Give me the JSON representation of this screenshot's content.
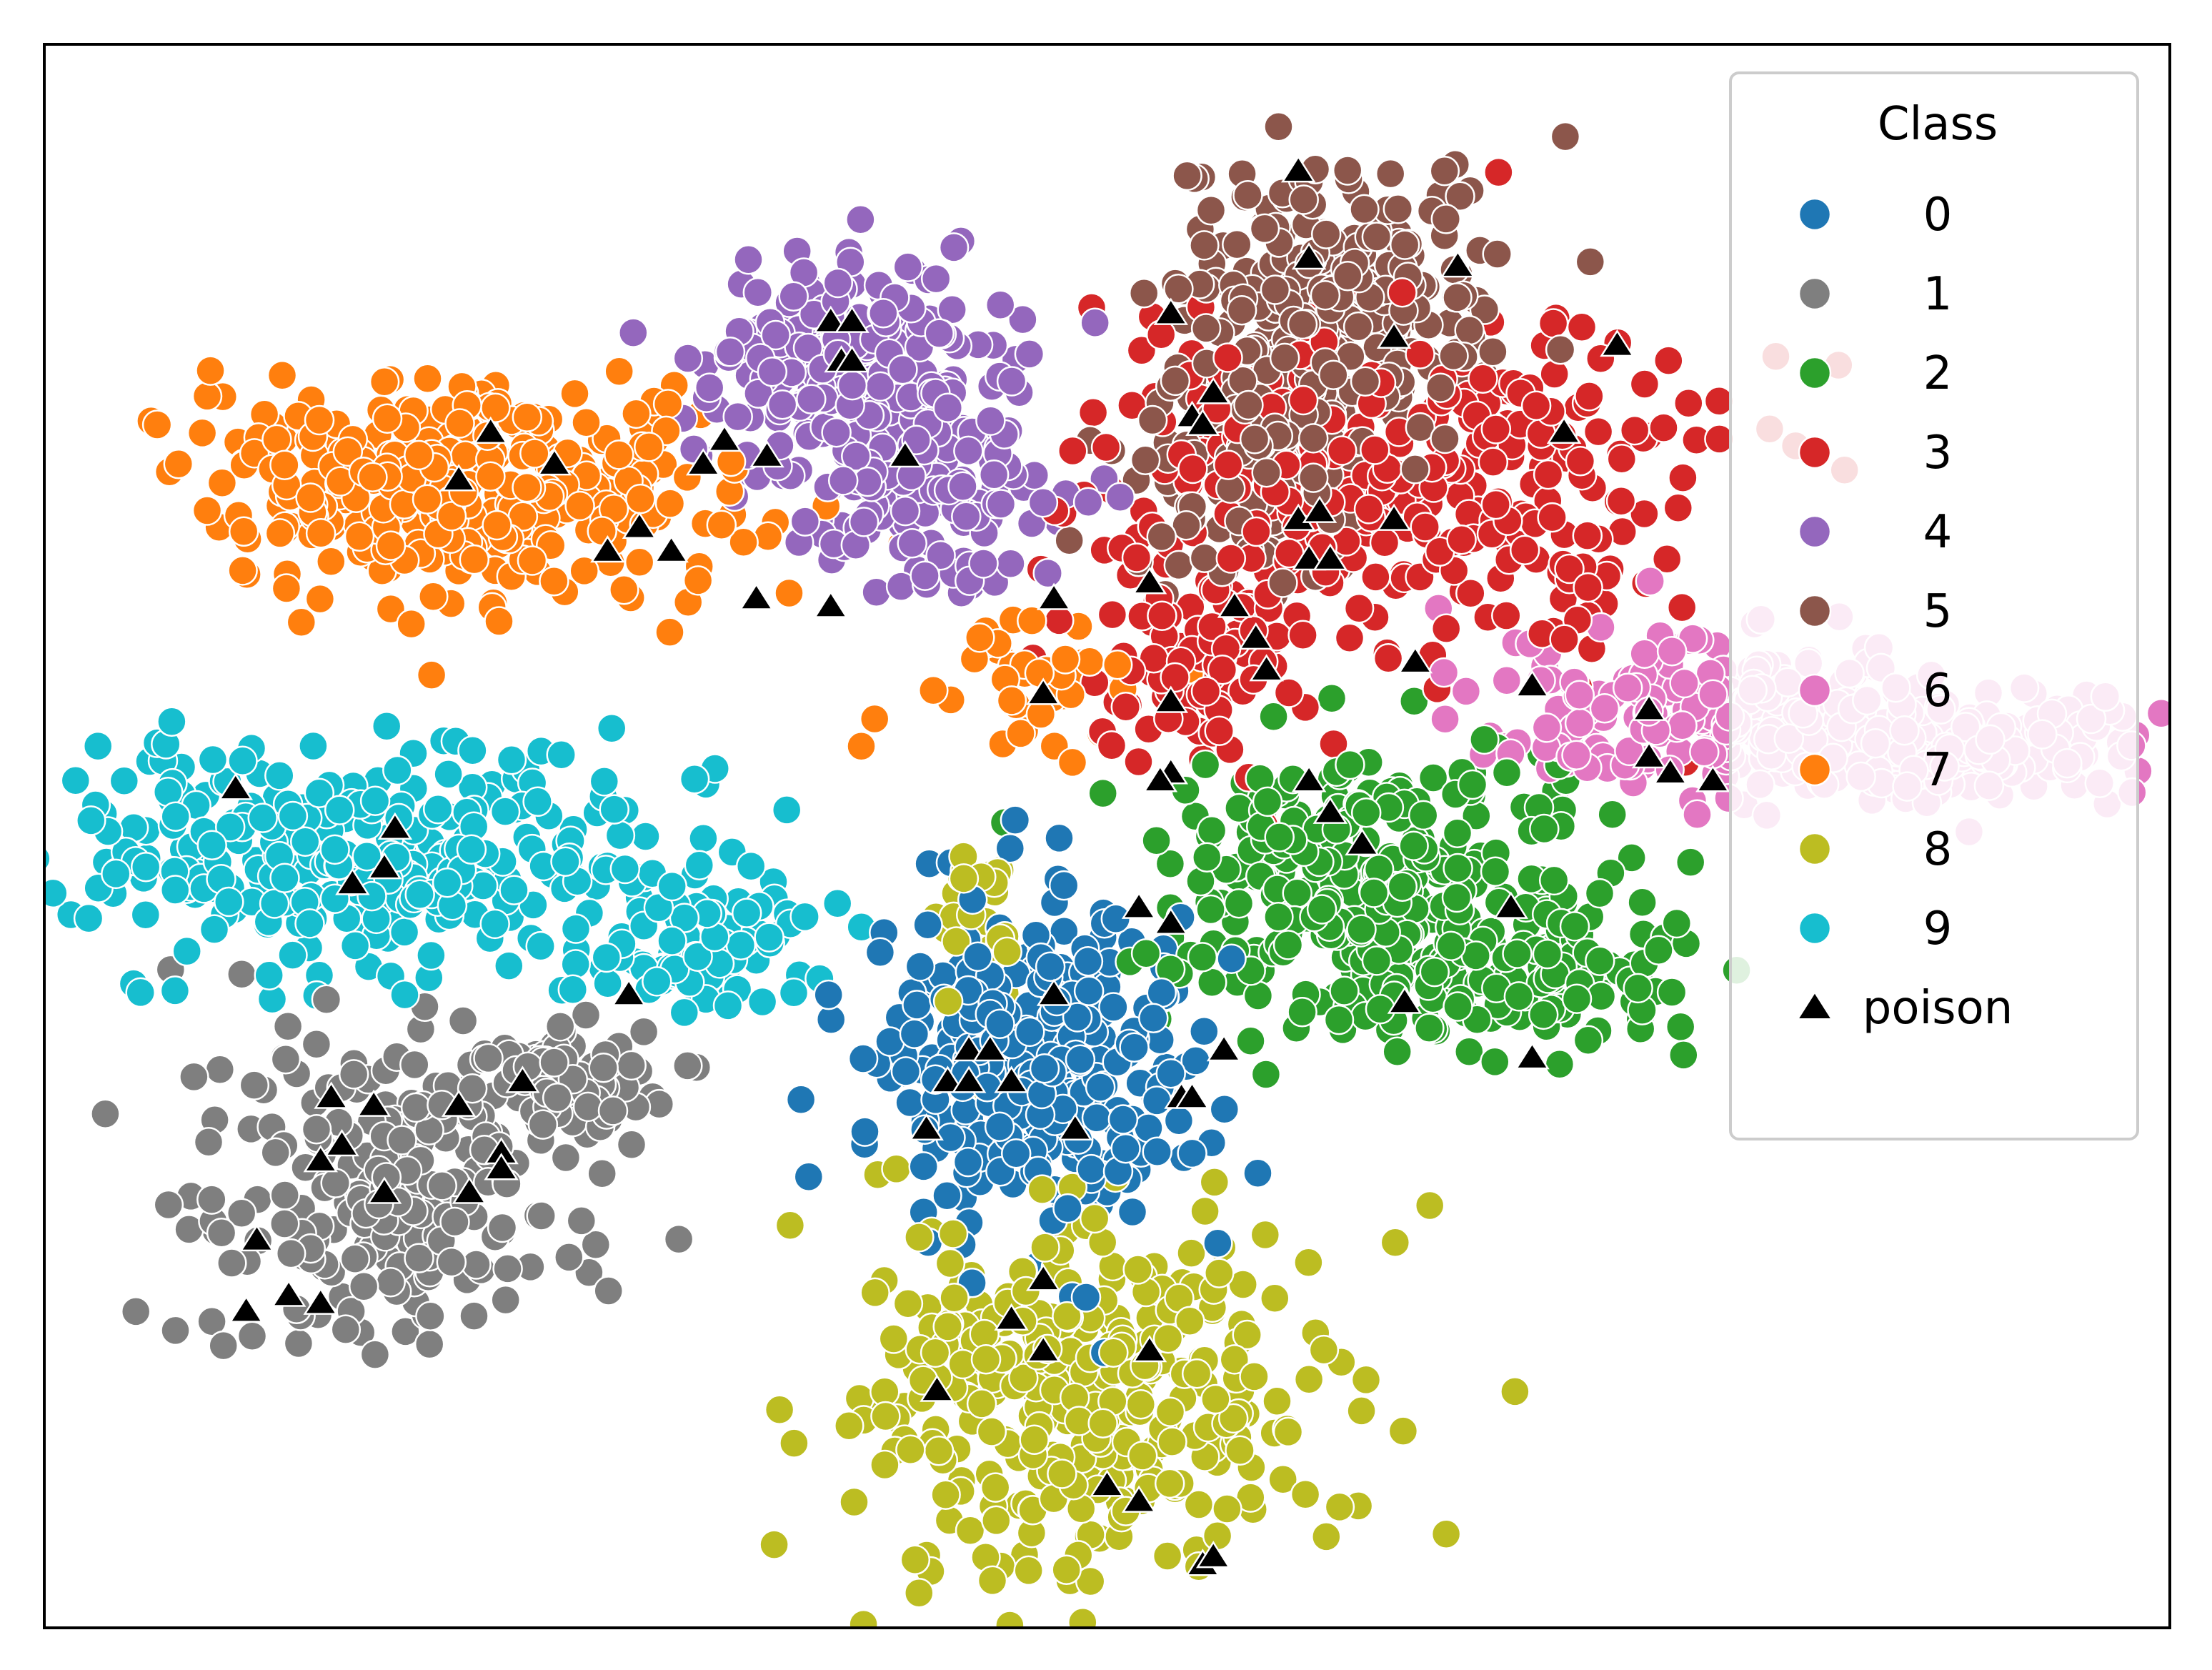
{
  "chart_data": {
    "type": "scatter",
    "title": "",
    "xlabel": "",
    "ylabel": "",
    "xlim": [
      0,
      100
    ],
    "ylim": [
      0,
      100
    ],
    "grid": false,
    "ticks": false,
    "legend": {
      "title": "Class",
      "placement": "top-right"
    },
    "series": [
      {
        "name": "0",
        "color": "#1f77b4",
        "marker": "circle",
        "clusters": [
          {
            "cx": 46.5,
            "cy": 35.5,
            "sx": 3.6,
            "sy": 5.0,
            "n": 340
          }
        ]
      },
      {
        "name": "1",
        "color": "#7f7f7f",
        "marker": "circle",
        "clusters": [
          {
            "cx": 16.5,
            "cy": 27.0,
            "sx": 4.5,
            "sy": 4.5,
            "n": 230
          },
          {
            "cx": 24.5,
            "cy": 35.0,
            "sx": 2.5,
            "sy": 2.0,
            "n": 90
          }
        ]
      },
      {
        "name": "2",
        "color": "#2ca02c",
        "marker": "circle",
        "clusters": [
          {
            "cx": 62.5,
            "cy": 47.0,
            "sx": 5.0,
            "sy": 4.5,
            "n": 340
          },
          {
            "cx": 70.5,
            "cy": 41.0,
            "sx": 3.5,
            "sy": 2.0,
            "n": 110
          }
        ]
      },
      {
        "name": "3",
        "color": "#d62728",
        "marker": "circle",
        "clusters": [
          {
            "cx": 63.5,
            "cy": 73.0,
            "sx": 7.0,
            "sy": 5.5,
            "n": 360
          },
          {
            "cx": 54.5,
            "cy": 61.0,
            "sx": 3.0,
            "sy": 3.0,
            "n": 90
          }
        ]
      },
      {
        "name": "4",
        "color": "#9467bd",
        "marker": "circle",
        "clusters": [
          {
            "cx": 37.5,
            "cy": 80.0,
            "sx": 3.5,
            "sy": 3.5,
            "n": 240
          },
          {
            "cx": 42.0,
            "cy": 72.0,
            "sx": 3.0,
            "sy": 3.0,
            "n": 130
          }
        ]
      },
      {
        "name": "5",
        "color": "#8c564b",
        "marker": "circle",
        "clusters": [
          {
            "cx": 60.5,
            "cy": 84.0,
            "sx": 3.5,
            "sy": 5.0,
            "n": 280
          },
          {
            "cx": 56.5,
            "cy": 73.0,
            "sx": 3.0,
            "sy": 3.5,
            "n": 110
          }
        ]
      },
      {
        "name": "6",
        "color": "#e377c2",
        "marker": "circle",
        "clusters": [
          {
            "cx": 79.0,
            "cy": 58.0,
            "sx": 5.5,
            "sy": 2.4,
            "n": 240
          },
          {
            "cx": 89.5,
            "cy": 55.5,
            "sx": 5.0,
            "sy": 1.8,
            "n": 190
          }
        ]
      },
      {
        "name": "7",
        "color": "#ff7f0e",
        "marker": "circle",
        "clusters": [
          {
            "cx": 20.0,
            "cy": 72.0,
            "sx": 6.5,
            "sy": 3.5,
            "n": 380
          },
          {
            "cx": 45.5,
            "cy": 61.0,
            "sx": 2.5,
            "sy": 3.0,
            "n": 40
          }
        ]
      },
      {
        "name": "8",
        "color": "#bcbd22",
        "marker": "circle",
        "clusters": [
          {
            "cx": 49.0,
            "cy": 14.5,
            "sx": 5.5,
            "sy": 6.0,
            "n": 360
          },
          {
            "cx": 43.5,
            "cy": 44.0,
            "sx": 1.2,
            "sy": 2.0,
            "n": 25
          }
        ]
      },
      {
        "name": "9",
        "color": "#17becf",
        "marker": "circle",
        "clusters": [
          {
            "cx": 15.0,
            "cy": 48.5,
            "sx": 7.5,
            "sy": 3.5,
            "n": 340
          },
          {
            "cx": 31.5,
            "cy": 43.0,
            "sx": 3.0,
            "sy": 2.0,
            "n": 70
          }
        ]
      },
      {
        "name": "poison",
        "color": "#000000",
        "marker": "triangle",
        "points": [
          [
            9.0,
            53.0
          ],
          [
            16.5,
            50.5
          ],
          [
            16.0,
            48.0
          ],
          [
            14.5,
            47.0
          ],
          [
            27.5,
            40.0
          ],
          [
            13.5,
            33.5
          ],
          [
            22.5,
            34.5
          ],
          [
            19.5,
            33.0
          ],
          [
            21.5,
            30.0
          ],
          [
            14.0,
            30.5
          ],
          [
            13.0,
            29.5
          ],
          [
            16.0,
            27.5
          ],
          [
            20.0,
            27.5
          ],
          [
            21.5,
            29.0
          ],
          [
            10.0,
            24.5
          ],
          [
            11.5,
            21.0
          ],
          [
            9.5,
            20.0
          ],
          [
            13.0,
            20.5
          ],
          [
            15.5,
            33.0
          ],
          [
            21.0,
            75.5
          ],
          [
            19.5,
            72.5
          ],
          [
            24.0,
            73.5
          ],
          [
            28.0,
            69.5
          ],
          [
            26.5,
            68.0
          ],
          [
            29.5,
            68.0
          ],
          [
            31.0,
            73.5
          ],
          [
            33.5,
            65.0
          ],
          [
            37.0,
            64.5
          ],
          [
            32.0,
            75.0
          ],
          [
            37.0,
            82.5
          ],
          [
            38.0,
            82.5
          ],
          [
            37.5,
            80.0
          ],
          [
            38.0,
            80.0
          ],
          [
            34.0,
            74.0
          ],
          [
            40.5,
            74.0
          ],
          [
            47.5,
            65.0
          ],
          [
            52.0,
            66.0
          ],
          [
            54.0,
            76.5
          ],
          [
            54.5,
            76.0
          ],
          [
            55.0,
            78.0
          ],
          [
            53.0,
            83.0
          ],
          [
            59.0,
            92.0
          ],
          [
            59.5,
            86.5
          ],
          [
            63.5,
            81.5
          ],
          [
            66.5,
            86.0
          ],
          [
            74.0,
            81.0
          ],
          [
            71.5,
            75.5
          ],
          [
            59.0,
            70.0
          ],
          [
            60.0,
            70.5
          ],
          [
            59.5,
            67.5
          ],
          [
            60.5,
            67.5
          ],
          [
            63.5,
            70.0
          ],
          [
            56.0,
            64.5
          ],
          [
            57.0,
            62.5
          ],
          [
            57.5,
            60.5
          ],
          [
            64.5,
            61.0
          ],
          [
            70.0,
            59.5
          ],
          [
            75.5,
            58.0
          ],
          [
            47.0,
            59.0
          ],
          [
            53.0,
            58.5
          ],
          [
            53.0,
            54.0
          ],
          [
            52.5,
            53.5
          ],
          [
            59.5,
            53.5
          ],
          [
            60.5,
            51.5
          ],
          [
            62.0,
            49.5
          ],
          [
            75.5,
            55.0
          ],
          [
            76.5,
            54.0
          ],
          [
            78.5,
            53.5
          ],
          [
            51.5,
            45.5
          ],
          [
            53.0,
            44.5
          ],
          [
            47.5,
            40.0
          ],
          [
            43.5,
            36.5
          ],
          [
            44.5,
            36.5
          ],
          [
            42.5,
            34.5
          ],
          [
            43.5,
            34.5
          ],
          [
            45.5,
            34.5
          ],
          [
            55.5,
            36.5
          ],
          [
            53.5,
            33.5
          ],
          [
            54.0,
            33.5
          ],
          [
            41.5,
            31.5
          ],
          [
            48.5,
            31.5
          ],
          [
            64.0,
            39.5
          ],
          [
            69.0,
            45.5
          ],
          [
            70.0,
            36.0
          ],
          [
            47.0,
            22.0
          ],
          [
            45.5,
            19.5
          ],
          [
            47.0,
            17.5
          ],
          [
            52.0,
            17.5
          ],
          [
            42.0,
            15.0
          ],
          [
            50.0,
            9.0
          ],
          [
            51.5,
            8.0
          ],
          [
            54.5,
            4.0
          ],
          [
            55.0,
            4.5
          ]
        ]
      }
    ]
  }
}
